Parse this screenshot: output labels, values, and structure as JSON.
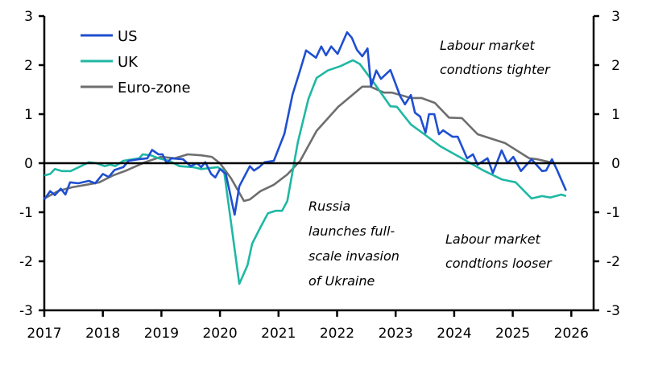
{
  "chart_data": {
    "type": "line",
    "title": "",
    "xlabel": "",
    "ylabel": "",
    "xlim": [
      2017,
      2026.4
    ],
    "ylim": [
      -3,
      3
    ],
    "x_ticks": [
      "2017",
      "2018",
      "2019",
      "2020",
      "2021",
      "2022",
      "2023",
      "2024",
      "2025",
      "2026"
    ],
    "y_ticks_left": [
      "3",
      "2",
      "1",
      "0",
      "-1",
      "-2",
      "-3"
    ],
    "y_ticks_right": [
      "3",
      "2",
      "1",
      "0",
      "-1",
      "-2",
      "-3"
    ],
    "legend_position": "top-left",
    "annotations": {
      "tighter": [
        "Labour market",
        "condtions tighter"
      ],
      "looser": [
        "Labour market",
        "condtions looser"
      ],
      "russia": [
        "Russia",
        "launches full-",
        "scale invasion",
        "of Ukraine"
      ]
    },
    "series": [
      {
        "name": "US",
        "color": "#1f4fd1",
        "points": [
          [
            2017.0,
            -0.74
          ],
          [
            2017.1,
            -0.57
          ],
          [
            2017.18,
            -0.65
          ],
          [
            2017.28,
            -0.52
          ],
          [
            2017.36,
            -0.64
          ],
          [
            2017.44,
            -0.39
          ],
          [
            2017.58,
            -0.41
          ],
          [
            2017.76,
            -0.36
          ],
          [
            2017.87,
            -0.41
          ],
          [
            2018.0,
            -0.22
          ],
          [
            2018.1,
            -0.28
          ],
          [
            2018.2,
            -0.14
          ],
          [
            2018.35,
            -0.08
          ],
          [
            2018.44,
            0.05
          ],
          [
            2018.61,
            0.08
          ],
          [
            2018.76,
            0.1
          ],
          [
            2018.84,
            0.27
          ],
          [
            2018.95,
            0.18
          ],
          [
            2019.02,
            0.18
          ],
          [
            2019.09,
            0.0
          ],
          [
            2019.17,
            0.1
          ],
          [
            2019.37,
            0.08
          ],
          [
            2019.5,
            -0.06
          ],
          [
            2019.61,
            0.0
          ],
          [
            2019.68,
            -0.08
          ],
          [
            2019.75,
            0.02
          ],
          [
            2019.85,
            -0.22
          ],
          [
            2019.92,
            -0.29
          ],
          [
            2020.0,
            -0.12
          ],
          [
            2020.1,
            -0.22
          ],
          [
            2020.25,
            -1.05
          ],
          [
            2020.33,
            -0.47
          ],
          [
            2020.51,
            -0.06
          ],
          [
            2020.58,
            -0.15
          ],
          [
            2020.67,
            -0.08
          ],
          [
            2020.76,
            0.02
          ],
          [
            2020.92,
            0.05
          ],
          [
            2021.1,
            0.6
          ],
          [
            2021.24,
            1.4
          ],
          [
            2021.37,
            1.9
          ],
          [
            2021.47,
            2.3
          ],
          [
            2021.64,
            2.15
          ],
          [
            2021.73,
            2.38
          ],
          [
            2021.81,
            2.2
          ],
          [
            2021.9,
            2.38
          ],
          [
            2022.01,
            2.23
          ],
          [
            2022.17,
            2.67
          ],
          [
            2022.25,
            2.56
          ],
          [
            2022.34,
            2.31
          ],
          [
            2022.43,
            2.18
          ],
          [
            2022.52,
            2.34
          ],
          [
            2022.58,
            1.57
          ],
          [
            2022.67,
            1.89
          ],
          [
            2022.75,
            1.72
          ],
          [
            2022.91,
            1.9
          ],
          [
            2023.08,
            1.36
          ],
          [
            2023.16,
            1.2
          ],
          [
            2023.26,
            1.39
          ],
          [
            2023.33,
            1.03
          ],
          [
            2023.42,
            0.95
          ],
          [
            2023.51,
            0.62
          ],
          [
            2023.57,
            1.0
          ],
          [
            2023.66,
            1.0
          ],
          [
            2023.74,
            0.59
          ],
          [
            2023.81,
            0.67
          ],
          [
            2023.97,
            0.54
          ],
          [
            2024.06,
            0.54
          ],
          [
            2024.22,
            0.1
          ],
          [
            2024.32,
            0.18
          ],
          [
            2024.4,
            -0.03
          ],
          [
            2024.57,
            0.1
          ],
          [
            2024.66,
            -0.2
          ],
          [
            2024.81,
            0.26
          ],
          [
            2024.91,
            0.0
          ],
          [
            2025.01,
            0.13
          ],
          [
            2025.14,
            -0.16
          ],
          [
            2025.32,
            0.08
          ],
          [
            2025.5,
            -0.16
          ],
          [
            2025.57,
            -0.15
          ],
          [
            2025.67,
            0.08
          ],
          [
            2025.76,
            -0.15
          ],
          [
            2025.91,
            -0.56
          ]
        ]
      },
      {
        "name": "UK",
        "color": "#1fb8a4",
        "points": [
          [
            2017.0,
            -0.25
          ],
          [
            2017.1,
            -0.22
          ],
          [
            2017.18,
            -0.12
          ],
          [
            2017.3,
            -0.16
          ],
          [
            2017.45,
            -0.16
          ],
          [
            2017.59,
            -0.08
          ],
          [
            2017.76,
            0.02
          ],
          [
            2017.89,
            0.0
          ],
          [
            2018.03,
            -0.06
          ],
          [
            2018.13,
            -0.03
          ],
          [
            2018.21,
            -0.06
          ],
          [
            2018.35,
            0.05
          ],
          [
            2018.62,
            0.1
          ],
          [
            2018.68,
            0.18
          ],
          [
            2018.82,
            0.16
          ],
          [
            2018.95,
            0.1
          ],
          [
            2019.13,
            0.05
          ],
          [
            2019.31,
            -0.06
          ],
          [
            2019.54,
            -0.08
          ],
          [
            2019.68,
            -0.12
          ],
          [
            2019.96,
            -0.08
          ],
          [
            2020.07,
            -0.16
          ],
          [
            2020.33,
            -2.46
          ],
          [
            2020.47,
            -2.08
          ],
          [
            2020.55,
            -1.64
          ],
          [
            2020.69,
            -1.31
          ],
          [
            2020.82,
            -1.02
          ],
          [
            2020.95,
            -0.97
          ],
          [
            2021.06,
            -0.97
          ],
          [
            2021.15,
            -0.77
          ],
          [
            2021.33,
            0.43
          ],
          [
            2021.51,
            1.31
          ],
          [
            2021.65,
            1.74
          ],
          [
            2021.84,
            1.89
          ],
          [
            2022.06,
            1.98
          ],
          [
            2022.27,
            2.1
          ],
          [
            2022.39,
            2.02
          ],
          [
            2022.67,
            1.57
          ],
          [
            2022.91,
            1.16
          ],
          [
            2023.02,
            1.15
          ],
          [
            2023.26,
            0.79
          ],
          [
            2023.49,
            0.59
          ],
          [
            2023.77,
            0.34
          ],
          [
            2024.13,
            0.1
          ],
          [
            2024.5,
            -0.15
          ],
          [
            2024.81,
            -0.33
          ],
          [
            2025.05,
            -0.39
          ],
          [
            2025.32,
            -0.72
          ],
          [
            2025.5,
            -0.67
          ],
          [
            2025.64,
            -0.7
          ],
          [
            2025.83,
            -0.64
          ],
          [
            2025.91,
            -0.67
          ]
        ]
      },
      {
        "name": "Euro-zone",
        "color": "#6e6e6e",
        "points": [
          [
            2017.0,
            -0.72
          ],
          [
            2017.25,
            -0.56
          ],
          [
            2017.48,
            -0.49
          ],
          [
            2017.72,
            -0.44
          ],
          [
            2017.94,
            -0.39
          ],
          [
            2018.17,
            -0.25
          ],
          [
            2018.4,
            -0.15
          ],
          [
            2018.72,
            0.02
          ],
          [
            2018.99,
            0.13
          ],
          [
            2019.23,
            0.1
          ],
          [
            2019.45,
            0.18
          ],
          [
            2019.68,
            0.16
          ],
          [
            2019.86,
            0.13
          ],
          [
            2020.0,
            0.0
          ],
          [
            2020.19,
            -0.31
          ],
          [
            2020.41,
            -0.77
          ],
          [
            2020.51,
            -0.74
          ],
          [
            2020.69,
            -0.57
          ],
          [
            2020.92,
            -0.44
          ],
          [
            2021.15,
            -0.23
          ],
          [
            2021.37,
            0.05
          ],
          [
            2021.65,
            0.66
          ],
          [
            2022.02,
            1.15
          ],
          [
            2022.43,
            1.56
          ],
          [
            2022.57,
            1.56
          ],
          [
            2022.8,
            1.44
          ],
          [
            2022.94,
            1.44
          ],
          [
            2023.26,
            1.33
          ],
          [
            2023.44,
            1.33
          ],
          [
            2023.67,
            1.23
          ],
          [
            2023.91,
            0.93
          ],
          [
            2024.13,
            0.92
          ],
          [
            2024.4,
            0.59
          ],
          [
            2024.87,
            0.41
          ],
          [
            2025.28,
            0.1
          ],
          [
            2025.42,
            0.08
          ],
          [
            2025.64,
            0.02
          ]
        ]
      }
    ]
  }
}
